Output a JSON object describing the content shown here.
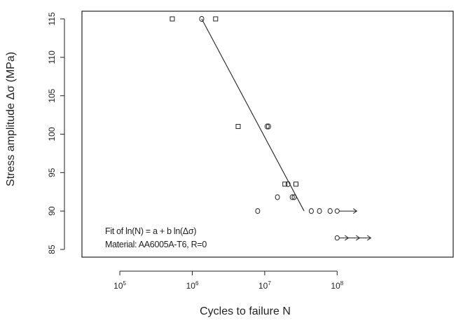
{
  "chart_data": {
    "type": "scatter",
    "xlabel": "Cycles to failure N",
    "ylabel": "Stress amplitude Δσ (MPa)",
    "x_scale": "log10",
    "xlim": [
      30000,
      4000000000
    ],
    "ylim": [
      84,
      116
    ],
    "x_ticks": [
      {
        "value": 100000,
        "base": "10",
        "exp": "5"
      },
      {
        "value": 1000000,
        "base": "10",
        "exp": "6"
      },
      {
        "value": 10000000,
        "base": "10",
        "exp": "7"
      },
      {
        "value": 100000000,
        "base": "10",
        "exp": "8"
      }
    ],
    "y_ticks": [
      85,
      90,
      95,
      100,
      105,
      110,
      115
    ],
    "grid": false,
    "annotations": [
      "Fit of ln(N) = a + b ln(Δσ)",
      "Material: AA6005A-T6, R=0"
    ],
    "series": [
      {
        "marker": "square",
        "points": [
          {
            "x": 530000,
            "y": 115
          },
          {
            "x": 2100000,
            "y": 115
          },
          {
            "x": 4300000,
            "y": 101
          },
          {
            "x": 19000000,
            "y": 93.5
          },
          {
            "x": 27000000,
            "y": 93.5
          }
        ]
      },
      {
        "marker": "circle",
        "points": [
          {
            "x": 1350000,
            "y": 115
          },
          {
            "x": 10800000,
            "y": 101
          },
          {
            "x": 11300000,
            "y": 101
          },
          {
            "x": 8000000,
            "y": 90
          },
          {
            "x": 15000000,
            "y": 91.8
          },
          {
            "x": 21000000,
            "y": 93.5
          },
          {
            "x": 24000000,
            "y": 91.8
          },
          {
            "x": 25500000,
            "y": 91.8
          },
          {
            "x": 44000000,
            "y": 90
          },
          {
            "x": 57000000,
            "y": 90
          },
          {
            "x": 80000000,
            "y": 90
          }
        ]
      },
      {
        "marker": "runout",
        "points": [
          {
            "x": 100000000,
            "y": 90
          },
          {
            "x": 100000000,
            "y": 86.5
          }
        ]
      }
    ],
    "fit_line": [
      {
        "x": 1350000,
        "y": 115
      },
      {
        "x": 35000000,
        "y": 90
      }
    ]
  }
}
